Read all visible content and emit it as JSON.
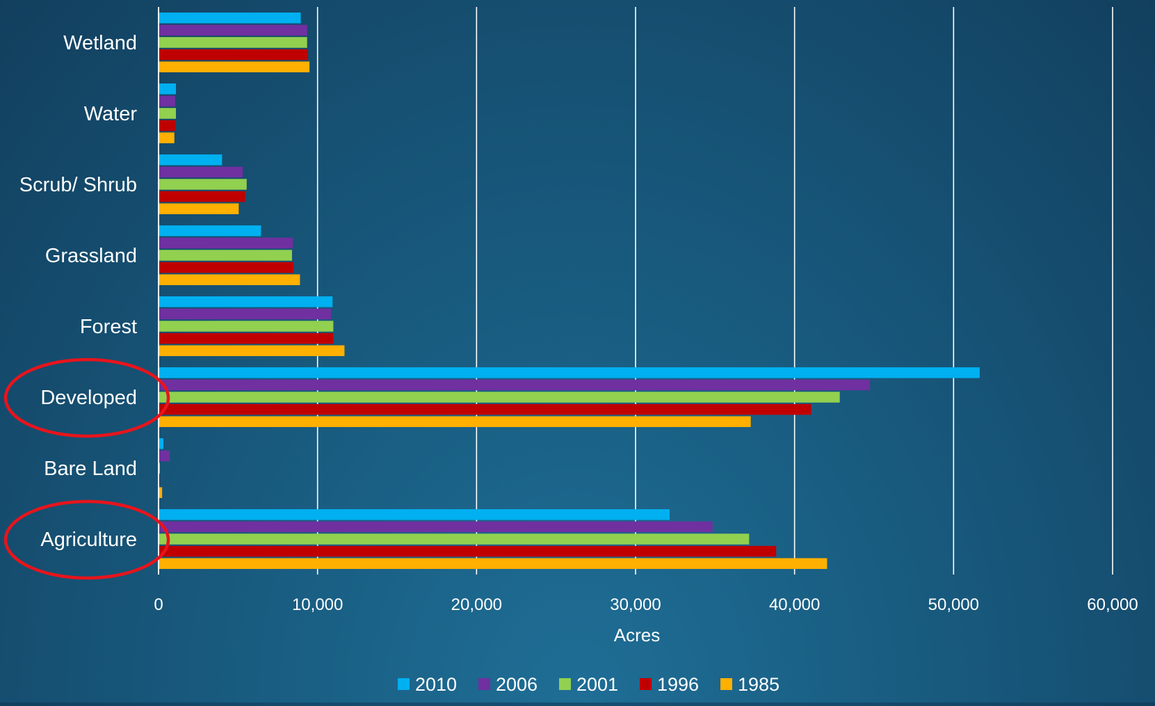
{
  "chart_data": {
    "type": "bar",
    "orientation": "horizontal",
    "categories": [
      "Wetland",
      "Water",
      "Scrub/ Shrub",
      "Grassland",
      "Forest",
      "Developed",
      "Bare Land",
      "Agriculture"
    ],
    "series": [
      {
        "name": "2010",
        "color": "#00b0f0",
        "values": [
          8900,
          1050,
          3950,
          6400,
          10900,
          51600,
          260,
          32100
        ]
      },
      {
        "name": "2006",
        "color": "#7030a0",
        "values": [
          9300,
          1000,
          5250,
          8400,
          10800,
          44700,
          650,
          34800
        ]
      },
      {
        "name": "2001",
        "color": "#92d050",
        "values": [
          9300,
          1050,
          5500,
          8350,
          10950,
          42800,
          40,
          37100
        ]
      },
      {
        "name": "1996",
        "color": "#c00000",
        "values": [
          9350,
          1000,
          5400,
          8450,
          10950,
          41000,
          30,
          38800
        ]
      },
      {
        "name": "1985",
        "color": "#ffb000",
        "values": [
          9450,
          950,
          5000,
          8850,
          11650,
          37200,
          180,
          42000
        ]
      }
    ],
    "xlabel": "Acres",
    "xlim": [
      0,
      60000
    ],
    "xticks": [
      0,
      10000,
      20000,
      30000,
      40000,
      50000,
      60000
    ],
    "xtick_labels": [
      "0",
      "10,000",
      "20,000",
      "30,000",
      "40,000",
      "50,000",
      "60,000"
    ],
    "grid": "vertical",
    "legend_position": "bottom",
    "highlighted_categories": [
      "Developed",
      "Agriculture"
    ],
    "highlight_color": "#e8141c"
  }
}
